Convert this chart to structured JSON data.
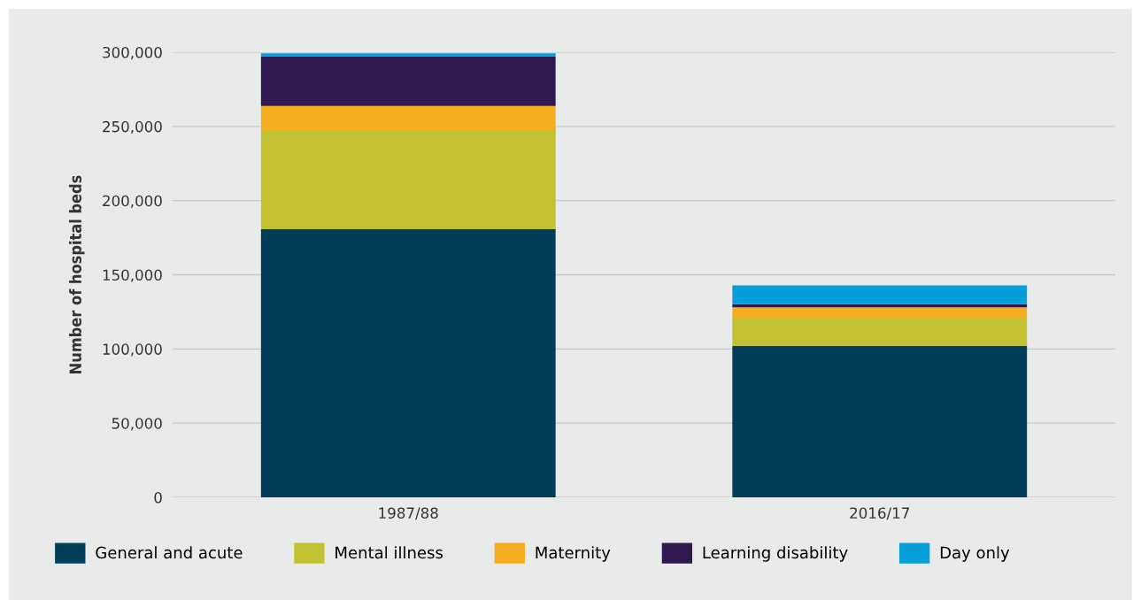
{
  "chart_data": {
    "type": "bar",
    "stacked": true,
    "ylabel": "Number of hospital beds",
    "categories": [
      "1987/88",
      "2016/17"
    ],
    "series": [
      {
        "name": "General and acute",
        "color": "#003e5a",
        "values": [
          180700,
          102200
        ]
      },
      {
        "name": "Mental illness",
        "color": "#c1c132",
        "values": [
          66800,
          18800
        ]
      },
      {
        "name": "Maternity",
        "color": "#f5ae1f",
        "values": [
          16300,
          7100
        ]
      },
      {
        "name": "Learning disability",
        "color": "#301850",
        "values": [
          33400,
          2000
        ]
      },
      {
        "name": "Day only",
        "color": "#049fda",
        "values": [
          2000,
          12700
        ]
      }
    ],
    "ylim": [
      0,
      300000
    ],
    "yticks": [
      {
        "value": 0,
        "label": "0"
      },
      {
        "value": 50000,
        "label": "50,000"
      },
      {
        "value": 100000,
        "label": "100,000"
      },
      {
        "value": 150000,
        "label": "150,000"
      },
      {
        "value": 200000,
        "label": "200,000"
      },
      {
        "value": 250000,
        "label": "250,000"
      },
      {
        "value": 300000,
        "label": "300,000"
      }
    ],
    "grid": "y",
    "legend": "bottom"
  }
}
